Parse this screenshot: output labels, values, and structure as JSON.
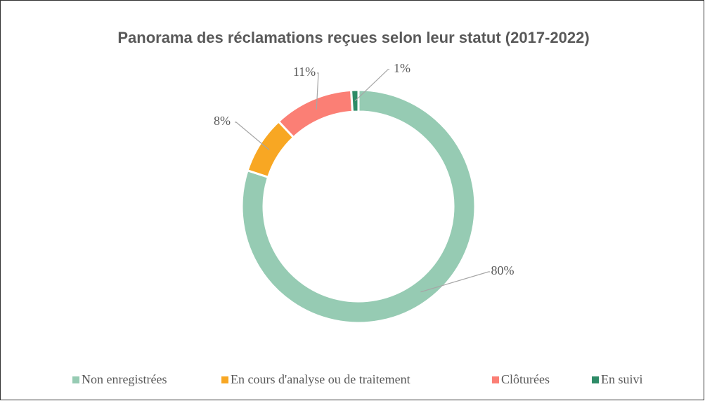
{
  "chart_data": {
    "type": "donut",
    "title": "Panorama des réclamations reçues selon leur statut (2017-2022)",
    "categories": [
      "Non enregistrées",
      "En cours d'analyse ou de traitement",
      "Clôturées",
      "En suivi"
    ],
    "values": [
      80,
      8,
      11,
      1
    ],
    "value_labels": [
      "80%",
      "8%",
      "11%",
      "1%"
    ],
    "colors": [
      "#96cbb3",
      "#f8a723",
      "#fb7f75",
      "#2e8b67"
    ],
    "legend": "bottom"
  }
}
